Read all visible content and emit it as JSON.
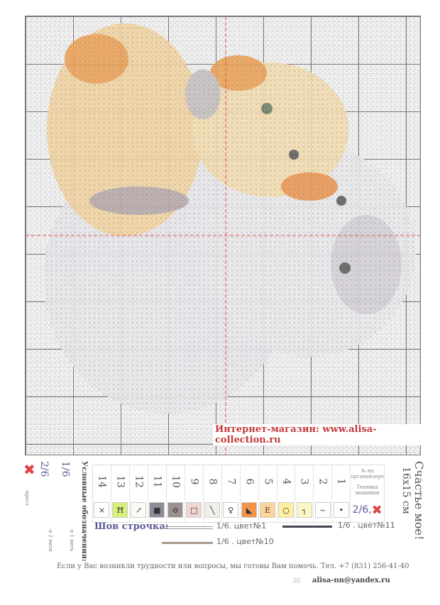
{
  "chart": {
    "shop_text": "Интернет-магазин: www.alisa-collection.ru"
  },
  "title": {
    "name": "Счастье мое!",
    "size": "16x15 см"
  },
  "legend": {
    "heading": "Условные обозначения:",
    "cross_2_6": "2/6",
    "cross_1_6": "1/6",
    "cross_label": "-крест",
    "threads_2": "-в 2 нити",
    "threads_1": "-в 1 нить",
    "organizer_label": "№ на органайзере",
    "technique_label": "Техника вышивки",
    "technique_value": "2/6,",
    "items": [
      {
        "n": "14",
        "sym": "×",
        "color": "#ffffff"
      },
      {
        "n": "13",
        "sym": "Ħ",
        "color": "#d8f07a"
      },
      {
        "n": "12",
        "sym": "↗",
        "color": "#fbfbf5"
      },
      {
        "n": "11",
        "sym": "■",
        "color": "#8e8a98"
      },
      {
        "n": "10",
        "sym": "⊖",
        "color": "#9a9090"
      },
      {
        "n": "9",
        "sym": "□",
        "color": "#efd6d3"
      },
      {
        "n": "8",
        "sym": "╲",
        "color": "#f0efe9"
      },
      {
        "n": "7",
        "sym": "♀",
        "color": "#ffffff"
      },
      {
        "n": "6",
        "sym": "◣",
        "color": "#f0944a"
      },
      {
        "n": "5",
        "sym": "Е",
        "color": "#fbd59a"
      },
      {
        "n": "4",
        "sym": "○",
        "color": "#fdf0a0"
      },
      {
        "n": "3",
        "sym": "┐",
        "color": "#fbf6c8"
      },
      {
        "n": "2",
        "sym": "~",
        "color": "#ffffff"
      },
      {
        "n": "1",
        "sym": "•",
        "color": "#ffffff"
      }
    ]
  },
  "backstitch": {
    "label": "Шов строчка:",
    "items": [
      {
        "text": "1/6. цвет№1",
        "color": "#9a9aa0"
      },
      {
        "text": "1/6 . цвет№11",
        "color": "#444450"
      },
      {
        "text": "1/6 . цвет№10",
        "color": "#a8988a"
      }
    ]
  },
  "footer": {
    "help": "Если у Вас возникли трудности или вопросы, мы готовы Вам помочь.   Тел. +7 (831) 256-41-40",
    "email": "alisa-nn@yandex.ru"
  },
  "colors": {
    "accent": "#c0393b",
    "blue_text": "#5a5a9a"
  }
}
